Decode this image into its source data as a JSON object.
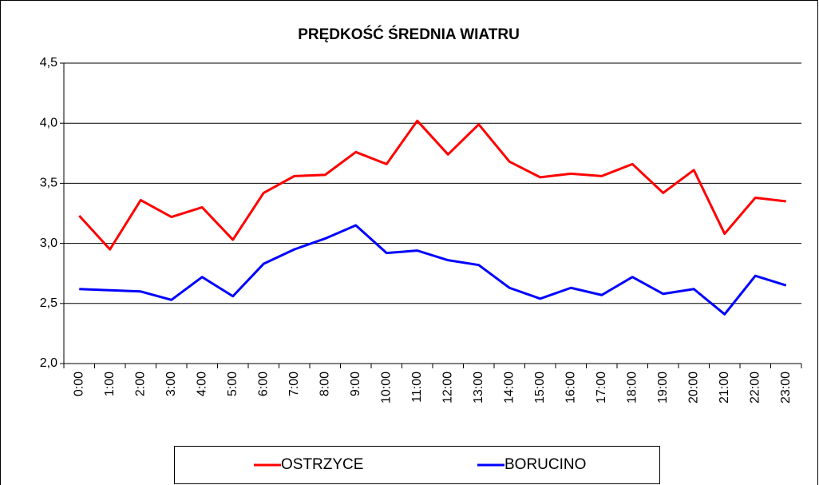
{
  "chart_data": {
    "type": "line",
    "title": "PRĘDKOŚĆ ŚREDNIA WIATRU",
    "categories": [
      "0:00",
      "1:00",
      "2:00",
      "3:00",
      "4:00",
      "5:00",
      "6:00",
      "7:00",
      "8:00",
      "9:00",
      "10:00",
      "11:00",
      "12:00",
      "13:00",
      "14:00",
      "15:00",
      "16:00",
      "17:00",
      "18:00",
      "19:00",
      "20:00",
      "21:00",
      "22:00",
      "23:00"
    ],
    "series": [
      {
        "name": "OSTRZYCE",
        "color": "#ff0000",
        "values": [
          3.23,
          2.95,
          3.36,
          3.22,
          3.3,
          3.03,
          3.42,
          3.56,
          3.57,
          3.76,
          3.66,
          4.02,
          3.74,
          3.99,
          3.68,
          3.55,
          3.58,
          3.56,
          3.66,
          3.42,
          3.61,
          3.08,
          3.38,
          3.35
        ]
      },
      {
        "name": "BORUCINO",
        "color": "#0000ff",
        "values": [
          2.62,
          2.61,
          2.6,
          2.53,
          2.72,
          2.56,
          2.83,
          2.95,
          3.04,
          3.15,
          2.92,
          2.94,
          2.86,
          2.82,
          2.63,
          2.54,
          2.63,
          2.57,
          2.72,
          2.58,
          2.62,
          2.41,
          2.73,
          2.65
        ]
      }
    ],
    "ylim": [
      2,
      4.5
    ],
    "yticks": [
      {
        "value": 2,
        "label": "2,0"
      },
      {
        "value": 2.5,
        "label": "2,5"
      },
      {
        "value": 3,
        "label": "3,0"
      },
      {
        "value": 3.5,
        "label": "3,5"
      },
      {
        "value": 4,
        "label": "4,0"
      },
      {
        "value": 4.5,
        "label": "4,5"
      }
    ],
    "grid": true,
    "legend": "bottom"
  }
}
